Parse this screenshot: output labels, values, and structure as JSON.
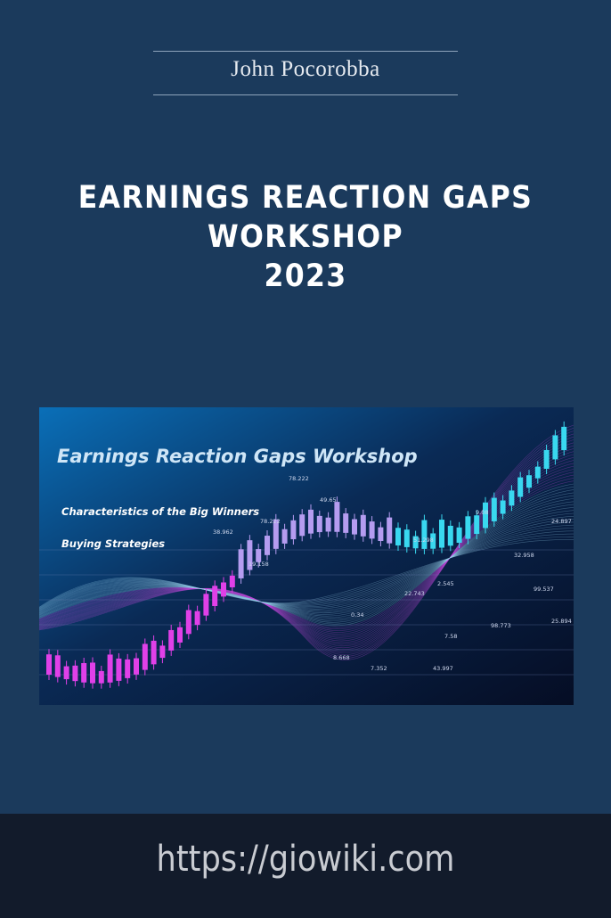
{
  "author": "John Pocorobba",
  "title_lines": [
    "EARNINGS REACTION GAPS WORKSHOP",
    "2023"
  ],
  "banner": {
    "title": "Earnings Reaction Gaps Workshop",
    "bullets": [
      "Characteristics of the Big Winners",
      "Buying Strategies"
    ],
    "figures": [
      "78.222",
      "49.65",
      "38.962",
      "78.222",
      "19.158",
      "51.298",
      "22.743",
      "98.773",
      "7.58",
      "8.668",
      "7.352",
      "43.997",
      "32.958",
      "24.897",
      "99.537",
      "25.894",
      "0.34",
      "2.545",
      "9.08"
    ]
  },
  "footer": {
    "url": "https://giowiki.com"
  }
}
